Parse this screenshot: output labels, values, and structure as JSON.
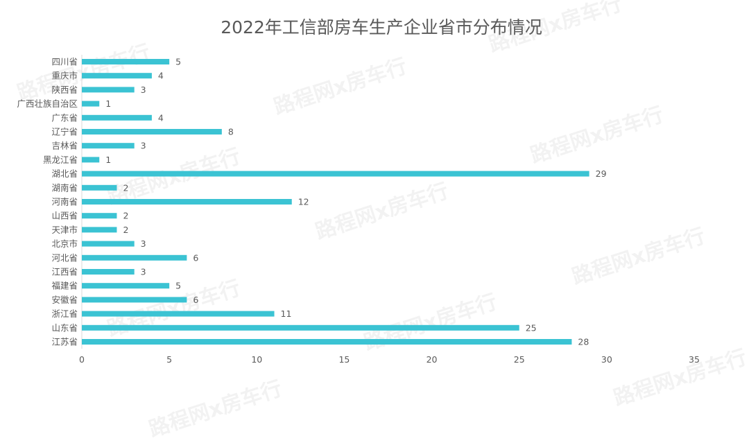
{
  "watermark": "路程网x房车行",
  "colors": {
    "bar": "#3BC3D3",
    "text": "#595959",
    "axis": "#D9D9D9"
  },
  "chart_data": {
    "type": "bar",
    "orientation": "horizontal",
    "title": "2022年工信部房车生产企业省市分布情况",
    "categories": [
      "四川省",
      "重庆市",
      "陕西省",
      "广西壮族自治区",
      "广东省",
      "辽宁省",
      "吉林省",
      "黑龙江省",
      "湖北省",
      "湖南省",
      "河南省",
      "山西省",
      "天津市",
      "北京市",
      "河北省",
      "江西省",
      "福建省",
      "安徽省",
      "浙江省",
      "山东省",
      "江苏省"
    ],
    "values": [
      5,
      4,
      3,
      1,
      4,
      8,
      3,
      1,
      29,
      2,
      12,
      2,
      2,
      3,
      6,
      3,
      5,
      6,
      11,
      25,
      28
    ],
    "xlim": [
      0,
      35
    ],
    "xticks": [
      0,
      5,
      10,
      15,
      20,
      25,
      30,
      35
    ],
    "grid": false,
    "data_labels": true
  }
}
